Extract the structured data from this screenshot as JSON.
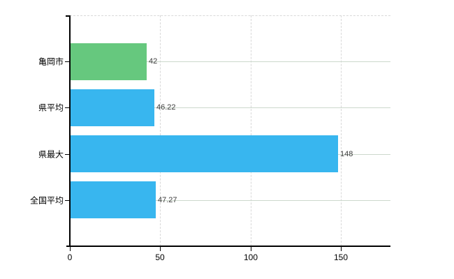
{
  "chart_data": {
    "type": "bar",
    "orientation": "horizontal",
    "title": "",
    "xlabel": "",
    "ylabel": "",
    "categories": [
      "亀岡市",
      "県平均",
      "県最大",
      "全国平均"
    ],
    "values": [
      42,
      46.22,
      148,
      47.27
    ],
    "value_labels": [
      "42",
      "46.22",
      "148",
      "47.27"
    ],
    "bar_colors": [
      "#66c87e",
      "#38b6ef",
      "#38b6ef",
      "#38b6ef"
    ],
    "x_ticks": [
      0,
      50,
      100,
      150
    ],
    "x_tick_labels": [
      "0",
      "50",
      "100",
      "150"
    ],
    "xlim": [
      0,
      177.5
    ],
    "grid": true,
    "legend": false
  },
  "colors": {
    "highlight_bar": "#66c87e",
    "default_bar": "#38b6ef",
    "horizontal_grid": "#ccd8cc",
    "vertical_grid": "#d8d8d8",
    "axis": "#000000",
    "value_text": "#3c3c3c",
    "label_text": "#000000",
    "background": "#ffffff"
  }
}
